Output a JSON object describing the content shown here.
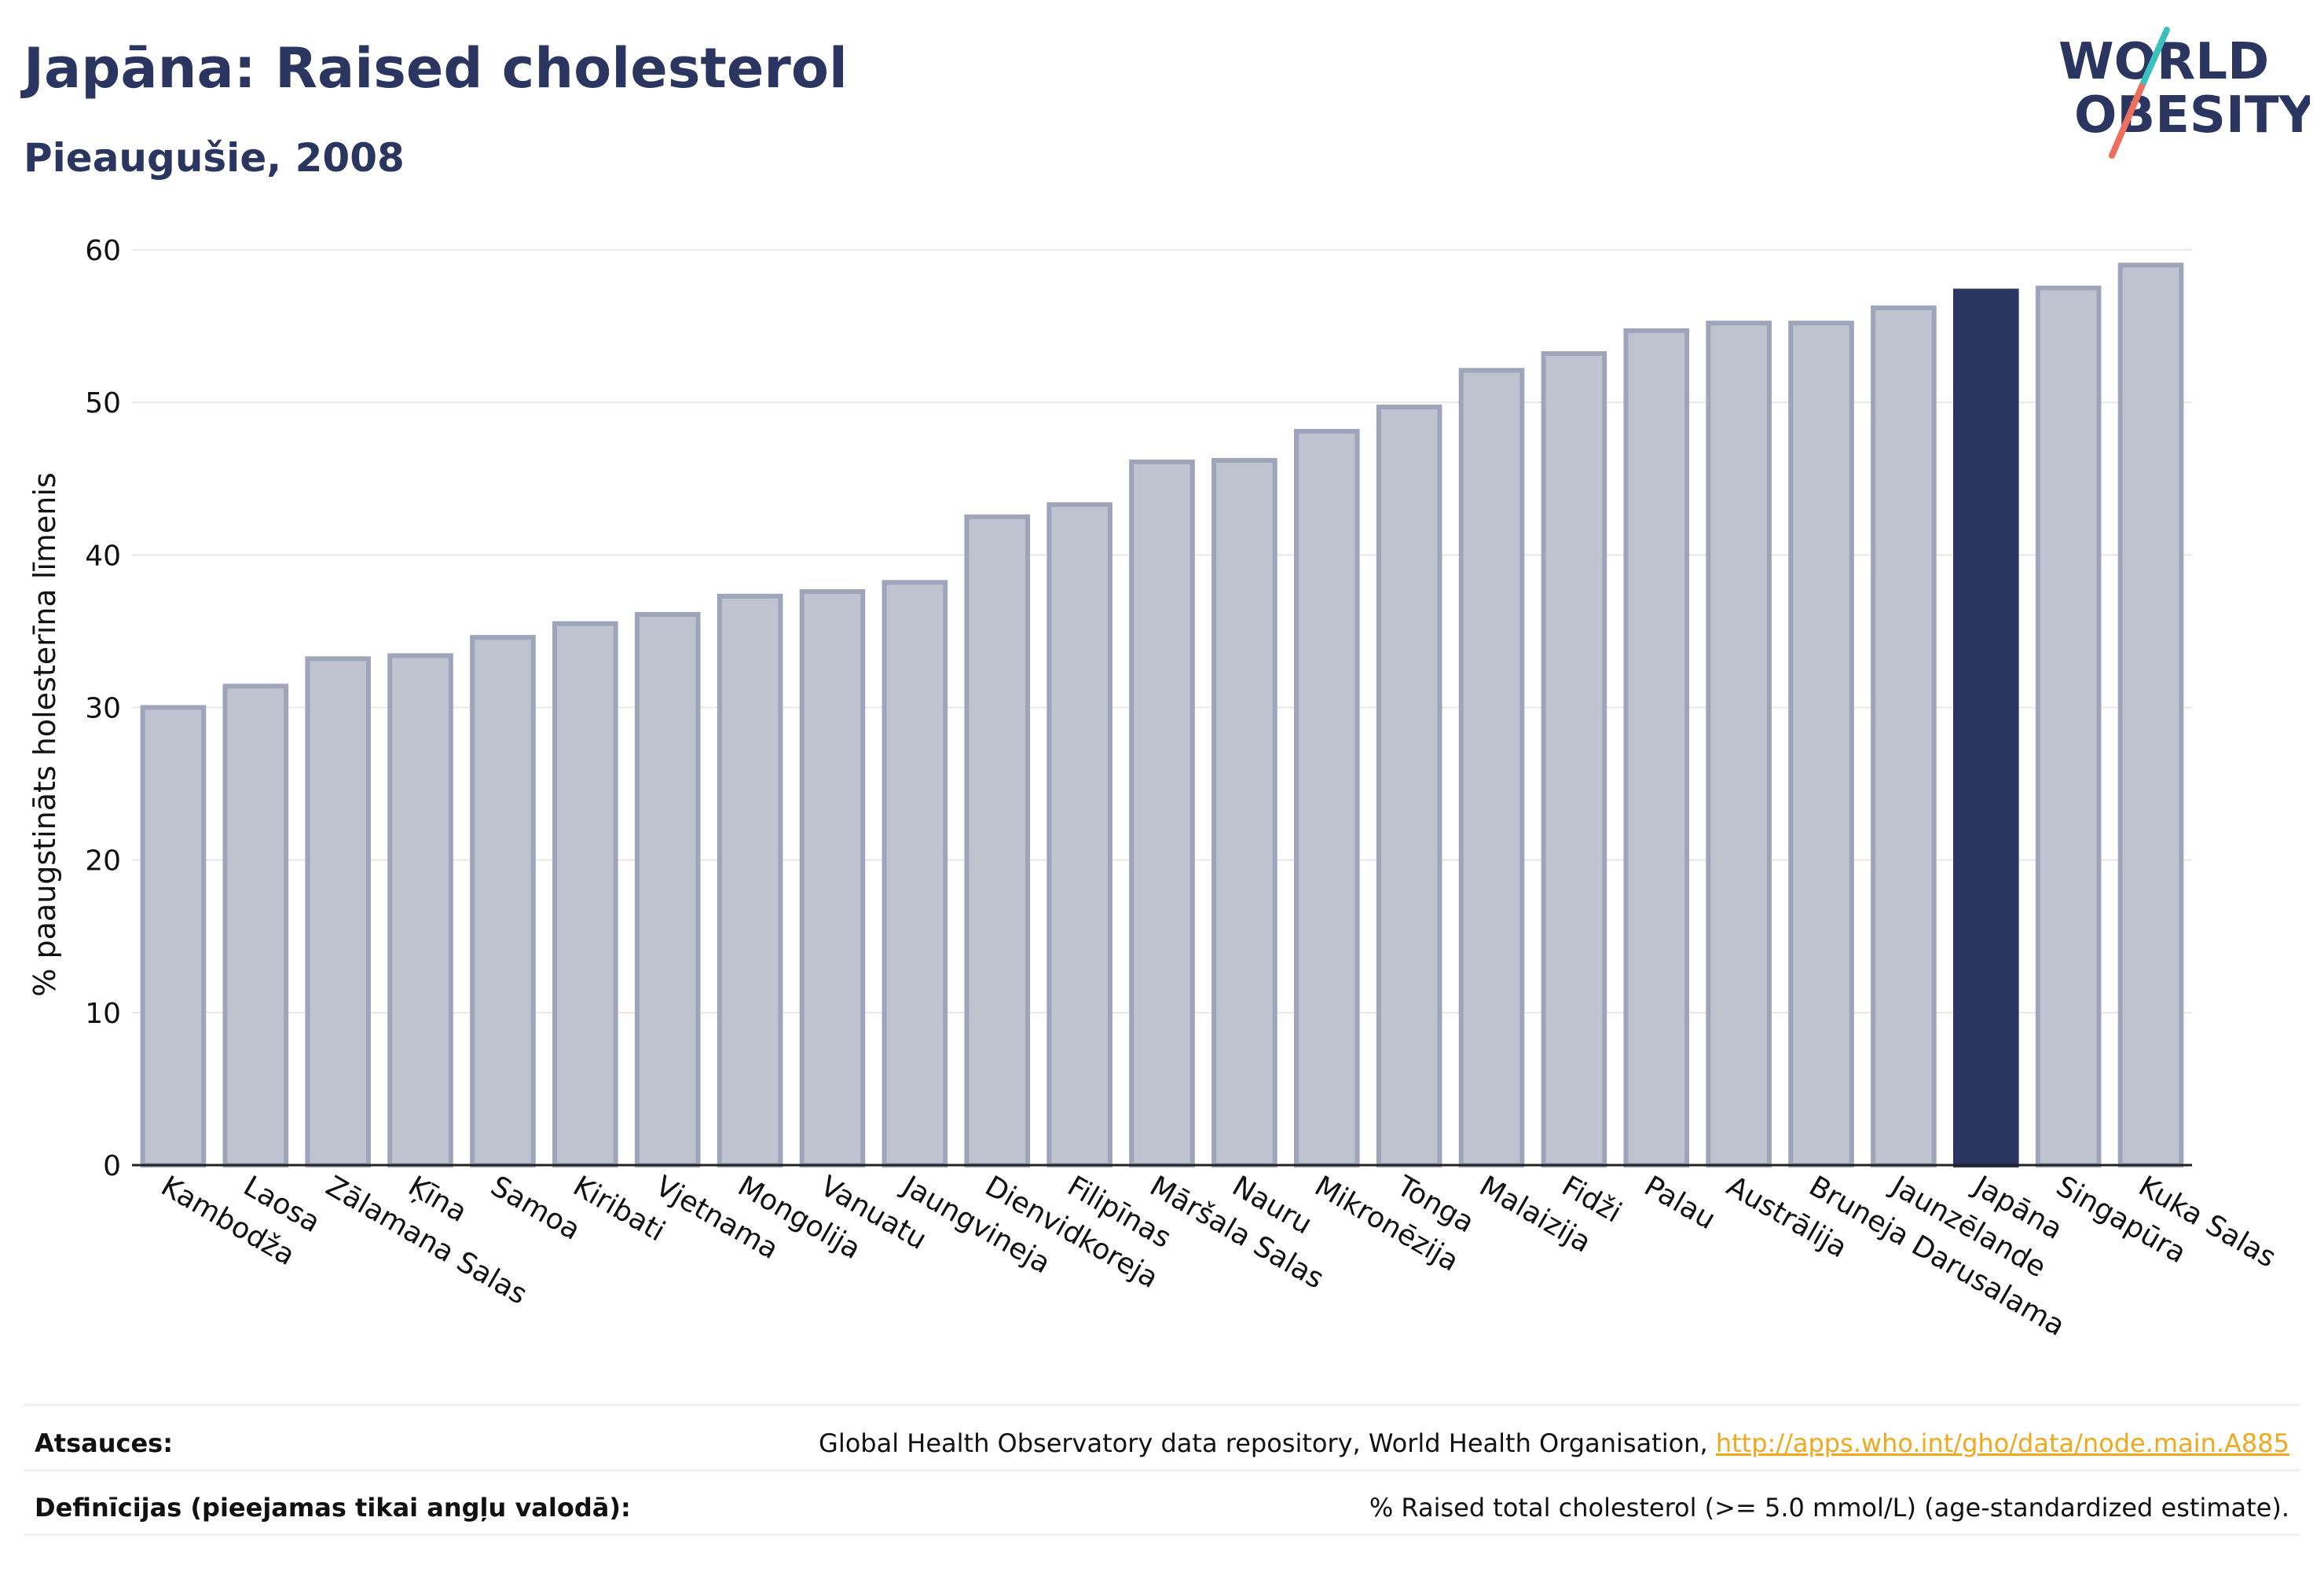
{
  "header": {
    "title": "Japāna: Raised cholesterol",
    "subtitle": "Pieaugušie, 2008"
  },
  "logo": {
    "line1": "WORLD",
    "line2": "OBESITY"
  },
  "chart_data": {
    "type": "bar",
    "title": "Japāna: Raised cholesterol",
    "subtitle": "Pieaugušie, 2008",
    "ylabel": "% paaugstināts holesterīna līmenis",
    "xlabel": "",
    "ylim": [
      0,
      60
    ],
    "yticks": [
      0,
      10,
      20,
      30,
      40,
      50,
      60
    ],
    "grid": true,
    "categories": [
      "Kambodža",
      "Laosa",
      "Zālamana Salas",
      "Ķīna",
      "Samoa",
      "Kiribati",
      "Vjetnama",
      "Mongolija",
      "Vanuatu",
      "Jaungvineja",
      "Dienvidkoreja",
      "Filipīnas",
      "Māršala Salas",
      "Nauru",
      "Mikronēzija",
      "Tonga",
      "Malaizija",
      "Fidži",
      "Palau",
      "Austrālija",
      "Bruneja Darusalama",
      "Jaunzēlande",
      "Japāna",
      "Singapūra",
      "Kuka Salas"
    ],
    "values": [
      30.0,
      31.4,
      33.2,
      33.4,
      34.6,
      35.5,
      36.1,
      37.3,
      37.6,
      38.2,
      42.5,
      43.3,
      46.1,
      46.2,
      48.1,
      49.7,
      52.1,
      53.2,
      54.7,
      55.2,
      55.2,
      56.2,
      57.3,
      57.5,
      59.0
    ],
    "highlight": "Japāna",
    "colors": {
      "bar": "#bfc3cf",
      "bar_stroke": "#9ea5ba",
      "highlight": "#2b3660",
      "grid": "#e6e8ee",
      "axis": "#222222"
    }
  },
  "footer": {
    "sources_label": "Atsauces:",
    "sources_text": "Global Health Observatory data repository, World Health Organisation, ",
    "sources_link": "http://apps.who.int/gho/data/node.main.A885",
    "definitions_label": "Definīcijas (pieejamas tikai angļu valodā):",
    "definitions_text": "% Raised total cholesterol (>= 5.0 mmol/L) (age-standardized estimate)."
  }
}
